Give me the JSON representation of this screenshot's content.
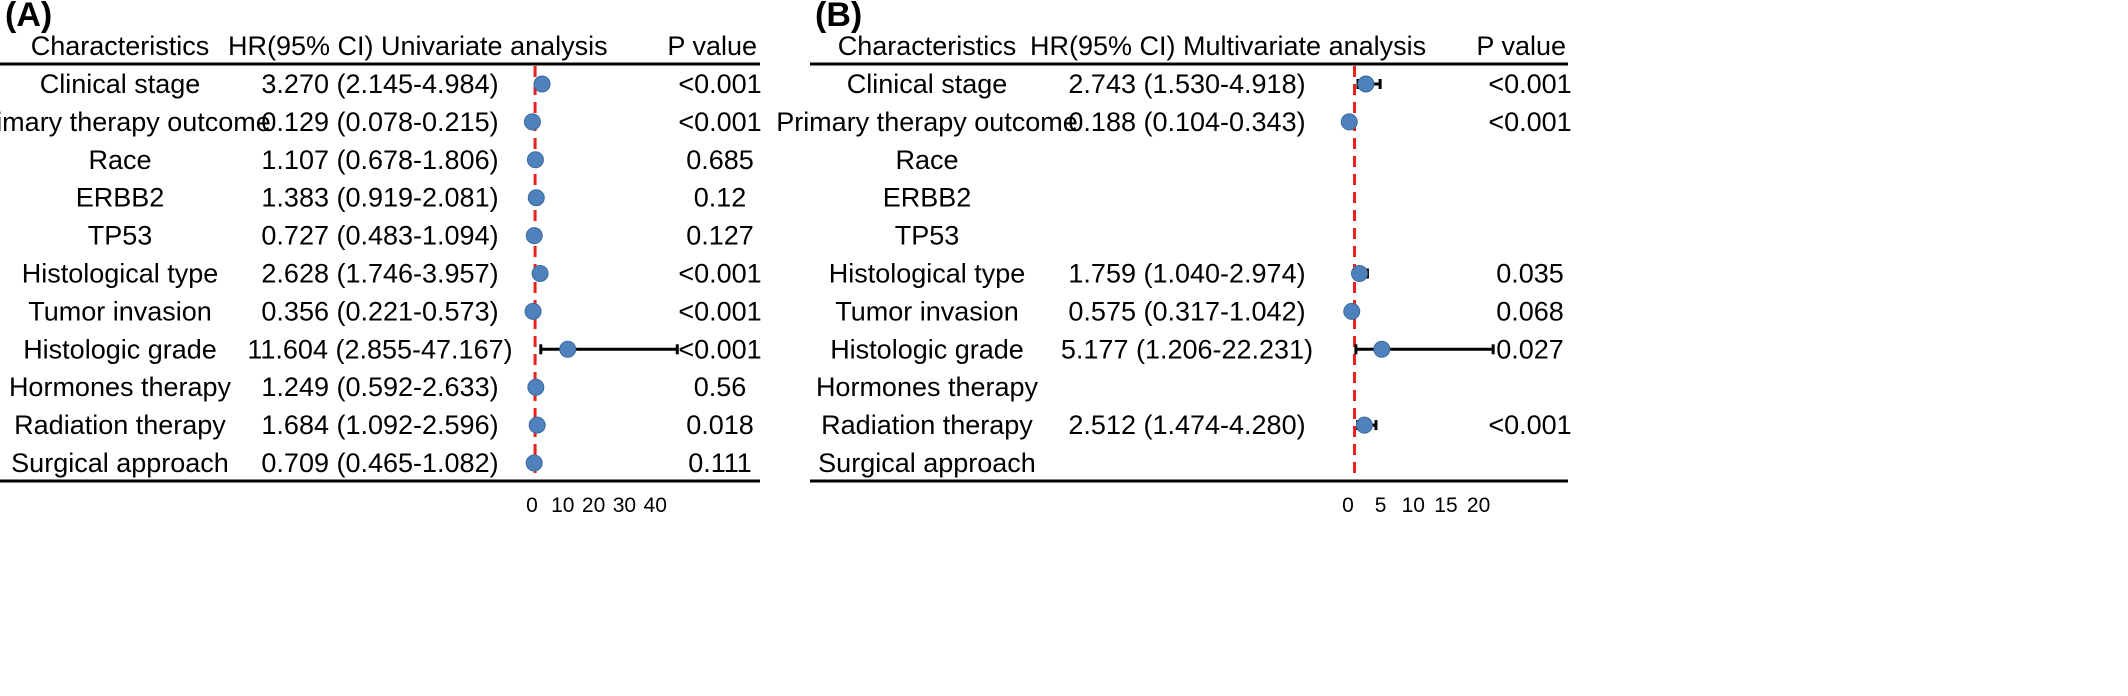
{
  "chart_data": [
    {
      "type": "forest",
      "panel_label": "(A)",
      "headers": {
        "characteristics": "Characteristics",
        "hr": "HR(95% CI) Univariate analysis",
        "p": "P value"
      },
      "rows": [
        {
          "characteristic": "Clinical stage",
          "hr_text": "3.270 (2.145-4.984)",
          "hr": 3.27,
          "lower": 2.145,
          "upper": 4.984,
          "p": "<0.001"
        },
        {
          "characteristic": "Primary therapy outcome",
          "hr_text": "0.129 (0.078-0.215)",
          "hr": 0.129,
          "lower": 0.078,
          "upper": 0.215,
          "p": "<0.001"
        },
        {
          "characteristic": "Race",
          "hr_text": "1.107 (0.678-1.806)",
          "hr": 1.107,
          "lower": 0.678,
          "upper": 1.806,
          "p": "0.685"
        },
        {
          "characteristic": "ERBB2",
          "hr_text": "1.383 (0.919-2.081)",
          "hr": 1.383,
          "lower": 0.919,
          "upper": 2.081,
          "p": "0.12"
        },
        {
          "characteristic": "TP53",
          "hr_text": "0.727 (0.483-1.094)",
          "hr": 0.727,
          "lower": 0.483,
          "upper": 1.094,
          "p": "0.127"
        },
        {
          "characteristic": "Histological type",
          "hr_text": "2.628 (1.746-3.957)",
          "hr": 2.628,
          "lower": 1.746,
          "upper": 3.957,
          "p": "<0.001"
        },
        {
          "characteristic": "Tumor invasion",
          "hr_text": "0.356 (0.221-0.573)",
          "hr": 0.356,
          "lower": 0.221,
          "upper": 0.573,
          "p": "<0.001"
        },
        {
          "characteristic": "Histologic grade",
          "hr_text": "11.604 (2.855-47.167)",
          "hr": 11.604,
          "lower": 2.855,
          "upper": 47.167,
          "p": "<0.001"
        },
        {
          "characteristic": "Hormones therapy",
          "hr_text": "1.249 (0.592-2.633)",
          "hr": 1.249,
          "lower": 0.592,
          "upper": 2.633,
          "p": "0.56"
        },
        {
          "characteristic": "Radiation therapy",
          "hr_text": "1.684 (1.092-2.596)",
          "hr": 1.684,
          "lower": 1.092,
          "upper": 2.596,
          "p": "0.018"
        },
        {
          "characteristic": "Surgical approach",
          "hr_text": "0.709 (0.465-1.082)",
          "hr": 0.709,
          "lower": 0.465,
          "upper": 1.082,
          "p": "0.111"
        }
      ],
      "xlim": [
        0,
        47.167
      ],
      "xticks": [
        0,
        10,
        20,
        30,
        40
      ],
      "reference_line": 1,
      "colors": {
        "point": "#4f81bd",
        "reference_line": "#e8211d",
        "whisker": "#000000"
      }
    },
    {
      "type": "forest",
      "panel_label": "(B)",
      "headers": {
        "characteristics": "Characteristics",
        "hr": "HR(95% CI) Multivariate analysis",
        "p": "P value"
      },
      "rows": [
        {
          "characteristic": "Clinical stage",
          "hr_text": "2.743 (1.530-4.918)",
          "hr": 2.743,
          "lower": 1.53,
          "upper": 4.918,
          "p": "<0.001"
        },
        {
          "characteristic": "Primary therapy outcome",
          "hr_text": "0.188 (0.104-0.343)",
          "hr": 0.188,
          "lower": 0.104,
          "upper": 0.343,
          "p": "<0.001"
        },
        {
          "characteristic": "Race",
          "hr_text": "",
          "hr": null,
          "lower": null,
          "upper": null,
          "p": ""
        },
        {
          "characteristic": "ERBB2",
          "hr_text": "",
          "hr": null,
          "lower": null,
          "upper": null,
          "p": ""
        },
        {
          "characteristic": "TP53",
          "hr_text": "",
          "hr": null,
          "lower": null,
          "upper": null,
          "p": ""
        },
        {
          "characteristic": "Histological type",
          "hr_text": "1.759 (1.040-2.974)",
          "hr": 1.759,
          "lower": 1.04,
          "upper": 2.974,
          "p": "0.035"
        },
        {
          "characteristic": "Tumor invasion",
          "hr_text": "0.575 (0.317-1.042)",
          "hr": 0.575,
          "lower": 0.317,
          "upper": 1.042,
          "p": "0.068"
        },
        {
          "characteristic": "Histologic grade",
          "hr_text": "5.177 (1.206-22.231)",
          "hr": 5.177,
          "lower": 1.206,
          "upper": 22.231,
          "p": "0.027"
        },
        {
          "characteristic": "Hormones therapy",
          "hr_text": "",
          "hr": null,
          "lower": null,
          "upper": null,
          "p": ""
        },
        {
          "characteristic": "Radiation therapy",
          "hr_text": "2.512 (1.474-4.280)",
          "hr": 2.512,
          "lower": 1.474,
          "upper": 4.28,
          "p": "<0.001"
        },
        {
          "characteristic": "Surgical approach",
          "hr_text": "",
          "hr": null,
          "lower": null,
          "upper": null,
          "p": ""
        }
      ],
      "xlim": [
        0,
        22.231
      ],
      "xticks": [
        0,
        5,
        10,
        15,
        20
      ],
      "reference_line": 1,
      "colors": {
        "point": "#4f81bd",
        "reference_line": "#e8211d",
        "whisker": "#000000"
      }
    }
  ]
}
